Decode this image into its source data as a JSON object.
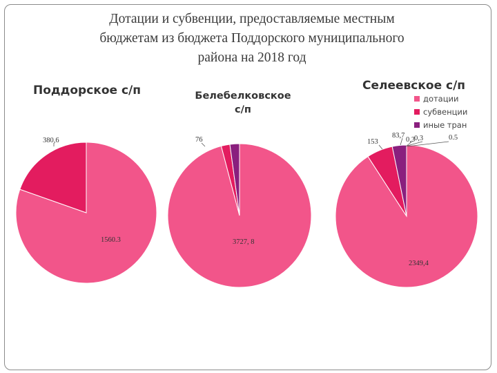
{
  "page": {
    "title_lines": [
      "Дотации и субвенции, предоставляемые местным",
      "бюджетам из бюджета Поддорского муниципального",
      "района на 2018 год"
    ]
  },
  "colors": {
    "dotacii": "#f2558a",
    "subvencii": "#e31c5f",
    "inye": "#8a1f7e",
    "leader": "#555555"
  },
  "legend": [
    "дотации",
    "субвенции",
    "иные тран"
  ],
  "chart_data": [
    {
      "type": "pie",
      "title": "Поддорское с/п",
      "slices": [
        {
          "label": "дотации",
          "value": 1560.3,
          "value_text": "1560.3"
        },
        {
          "label": "субвенции",
          "value": 380.6,
          "value_text": "380,6"
        }
      ]
    },
    {
      "type": "pie",
      "title": "Белебелковское с/п",
      "slices": [
        {
          "label": "дотации",
          "value": 3727.8,
          "value_text": "3727, 8"
        },
        {
          "label": "субвенции",
          "value": 76,
          "value_text": "76"
        },
        {
          "label": "иные тран",
          "value": 83.7,
          "value_text": ""
        }
      ]
    },
    {
      "type": "pie",
      "title": "Селеевское с/п",
      "legend_placement": "top-right",
      "slices": [
        {
          "label": "дотации",
          "value": 2349.4,
          "value_text": "2349,4"
        },
        {
          "label": "субвенции",
          "value": 153,
          "value_text": "153"
        },
        {
          "label": "иные тран",
          "value": 83.7,
          "value_text": "83,7"
        }
      ],
      "extra_labels": [
        "0,3",
        "0,3",
        "0.5"
      ]
    }
  ]
}
